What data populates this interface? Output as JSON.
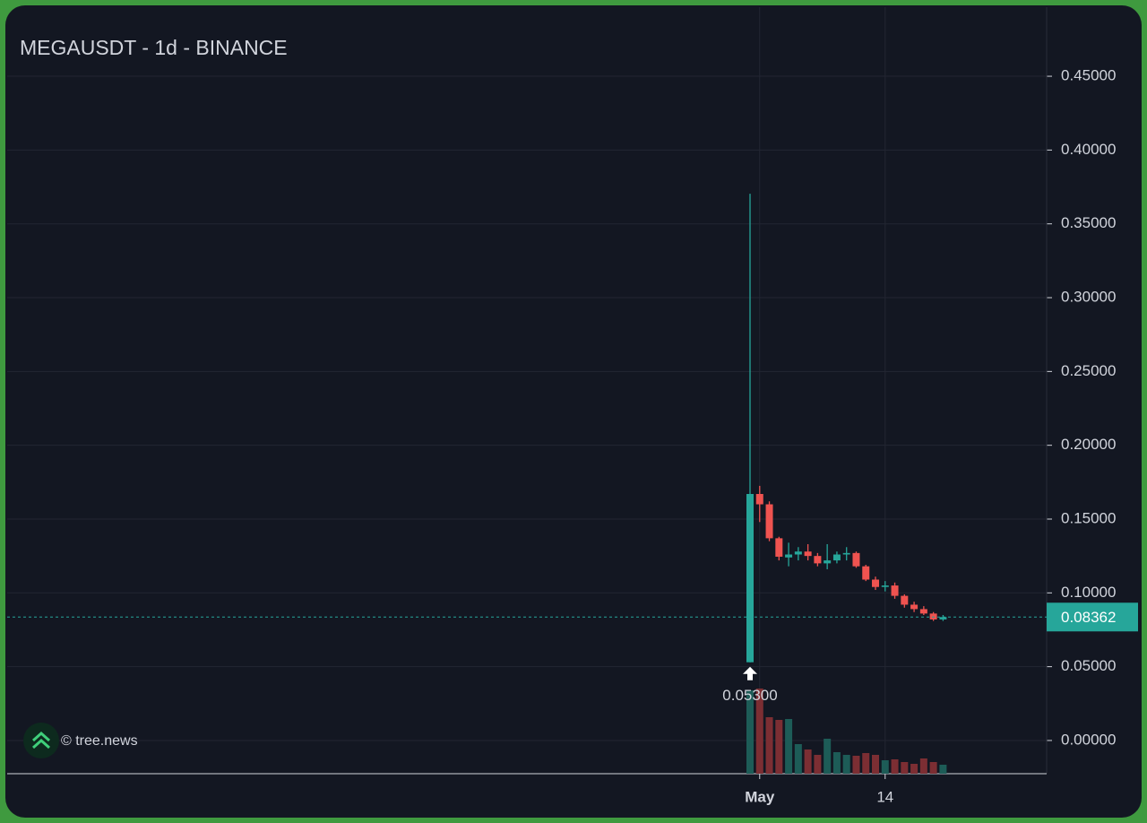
{
  "chart_data": {
    "type": "candlestick",
    "title": "MEGAUSDT - 1d - BINANCE",
    "categories": [
      null,
      "May",
      null,
      null,
      null,
      null,
      null,
      null,
      null,
      null,
      null,
      null,
      null,
      null,
      "14",
      null,
      null,
      null,
      null,
      null,
      null
    ],
    "open": [
      0.053,
      0.167,
      0.16,
      0.137,
      0.124,
      0.126,
      0.128,
      0.125,
      0.12,
      0.122,
      0.126,
      0.127,
      0.118,
      0.109,
      0.104,
      0.105,
      0.098,
      0.092,
      0.089,
      0.086,
      0.082
    ],
    "high": [
      0.3704,
      0.1725,
      0.162,
      0.138,
      0.134,
      0.131,
      0.133,
      0.127,
      0.133,
      0.128,
      0.131,
      0.128,
      0.119,
      0.111,
      0.108,
      0.107,
      0.099,
      0.094,
      0.091,
      0.087,
      0.085
    ],
    "low": [
      0.053,
      0.148,
      0.135,
      0.122,
      0.118,
      0.122,
      0.122,
      0.118,
      0.116,
      0.12,
      0.122,
      0.117,
      0.108,
      0.102,
      0.101,
      0.096,
      0.09,
      0.087,
      0.085,
      0.081,
      0.081
    ],
    "close": [
      0.167,
      0.16,
      0.137,
      0.1245,
      0.126,
      0.128,
      0.125,
      0.12,
      0.122,
      0.126,
      0.127,
      0.118,
      0.109,
      0.104,
      0.105,
      0.098,
      0.092,
      0.089,
      0.086,
      0.082,
      0.08362
    ],
    "volume": [
      93,
      95,
      63,
      60,
      61,
      33,
      27,
      21,
      39,
      24,
      21,
      20,
      23,
      21,
      15,
      16,
      13,
      11,
      17,
      13,
      10
    ],
    "up_color": "#26a69a",
    "down_color": "#ef5350",
    "up_volume_color": "#1d5c57",
    "down_volume_color": "#7c2e33",
    "ylim": [
      -0.0225,
      0.4968
    ],
    "yticks": [
      {
        "value": 0,
        "label": "0.00000"
      },
      {
        "value": 0.05,
        "label": "0.05000"
      },
      {
        "value": 0.1,
        "label": "0.10000"
      },
      {
        "value": 0.15,
        "label": "0.15000"
      },
      {
        "value": 0.2,
        "label": "0.20000"
      },
      {
        "value": 0.25,
        "label": "0.25000"
      },
      {
        "value": 0.3,
        "label": "0.30000"
      },
      {
        "value": 0.35,
        "label": "0.35000"
      },
      {
        "value": 0.4,
        "label": "0.40000"
      },
      {
        "value": 0.45,
        "label": "0.45000"
      }
    ],
    "last_price": 0.08362,
    "low_annotation": {
      "value": 0.053,
      "label": "0.05300"
    },
    "watermark": "© tree.news",
    "grid": true
  }
}
